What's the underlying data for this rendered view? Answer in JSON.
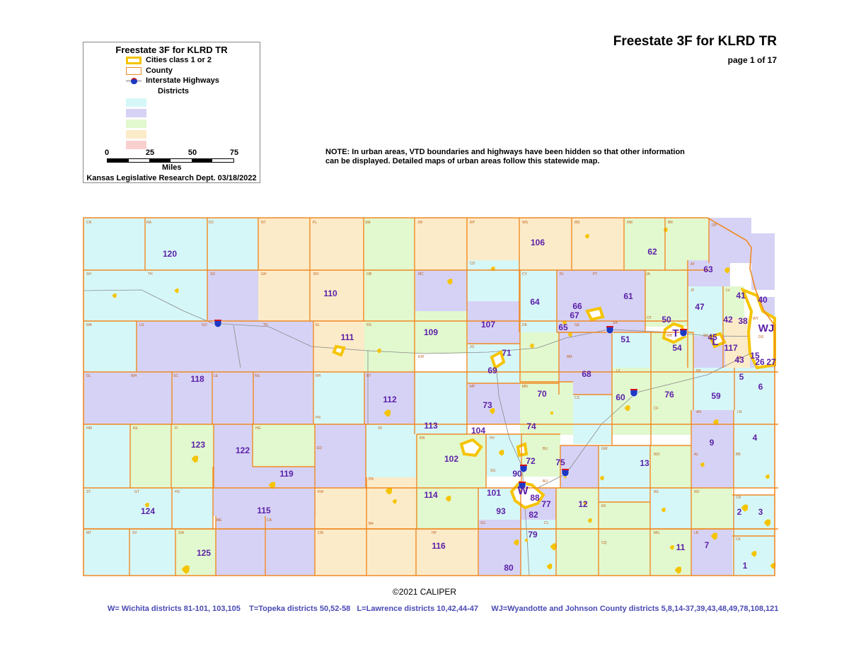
{
  "header": {
    "title": "Freestate 3F for KLRD TR",
    "page": "page 1 of 17"
  },
  "note": "NOTE:  In urban areas, VTD boundaries and highways have been hidden so that other information can be displayed.  Detailed maps of urban areas follow this statewide map.",
  "legend": {
    "title": "Freestate 3F for KLRD TR",
    "items": [
      {
        "label": "Cities class 1 or 2",
        "icon": "city-outline-icon"
      },
      {
        "label": "County",
        "icon": "county-outline-icon"
      },
      {
        "label": "Interstate Highways",
        "icon": "interstate-shield-icon"
      }
    ],
    "districts_label": "Districts",
    "swatch_colors": [
      "#d6f7f8",
      "#d6d2f5",
      "#e2f8cf",
      "#fcebc9",
      "#f9cfcf"
    ],
    "scale": {
      "ticks": [
        "0",
        "25",
        "50",
        "75"
      ],
      "unit": "Miles"
    },
    "credit": "Kansas Legislative Research Dept. 03/18/2022"
  },
  "colors": {
    "cyan": "#d6f7f8",
    "lavender": "#d6d2f5",
    "green": "#e2f8cf",
    "tan": "#fcebc9",
    "county_line": "#f08a24",
    "city": "#f5c400",
    "district_label": "#5b1fa8"
  },
  "county_codes": [
    "CN",
    "RA",
    "DC",
    "NT",
    "PL",
    "SM",
    "JW",
    "RP",
    "WS",
    "MS",
    "NM",
    "BR",
    "DP",
    "SH",
    "TH",
    "SD",
    "GH",
    "RO",
    "OB",
    "MC",
    "CD",
    "CY",
    "RL",
    "PT",
    "JA",
    "AT",
    "JF",
    "LV",
    "WY",
    "WA",
    "LG",
    "GO",
    "TR",
    "EL",
    "RS",
    "DK",
    "GE",
    "SA",
    "OT",
    "WB",
    "SN",
    "DG",
    "JO",
    "GL",
    "WH",
    "SC",
    "LE",
    "NS",
    "RH",
    "BT",
    "EW",
    "MP",
    "MN",
    "MR",
    "LY",
    "FR",
    "MI",
    "CS",
    "CF",
    "AN",
    "LN",
    "HM",
    "KE",
    "FI",
    "HG",
    "PN",
    "ED",
    "SF",
    "RN",
    "HV",
    "BU",
    "GW",
    "WO",
    "AL",
    "BB",
    "ST",
    "GT",
    "HS",
    "KW",
    "PR",
    "SG",
    "BU",
    "WL",
    "NO",
    "CR",
    "MT",
    "SV",
    "SW",
    "ME",
    "CA",
    "CM",
    "BA",
    "HP",
    "SU",
    "CL",
    "EK",
    "CQ",
    "MG",
    "LB",
    "CK"
  ],
  "districts": [
    "120",
    "106",
    "62",
    "63",
    "41",
    "40",
    "110",
    "61",
    "47",
    "42",
    "38",
    "64",
    "66",
    "67",
    "50",
    "WJ",
    "107",
    "109",
    "65",
    "T",
    "45",
    "51",
    "111",
    "54",
    "L",
    "117",
    "71",
    "15",
    "69",
    "43",
    "26",
    "27",
    "5",
    "68",
    "6",
    "118",
    "112",
    "76",
    "60",
    "70",
    "59",
    "73",
    "113",
    "74",
    "104",
    "4",
    "9",
    "123",
    "122",
    "102",
    "72",
    "75",
    "13",
    "119",
    "90",
    "W",
    "2",
    "3",
    "101",
    "114",
    "88",
    "115",
    "93",
    "77",
    "12",
    "124",
    "82",
    "79",
    "11",
    "7",
    "116",
    "125",
    "80",
    "1"
  ],
  "copyright": "©2021 CALIPER",
  "footnote": "W= Wichita districts 81-101, 103,105    T=Topeka districts 50,52-58   L=Lawrence districts 10,42,44-47      WJ=Wyandotte and Johnson County districts 5,8,14-37,39,43,48,49,78,108,121"
}
